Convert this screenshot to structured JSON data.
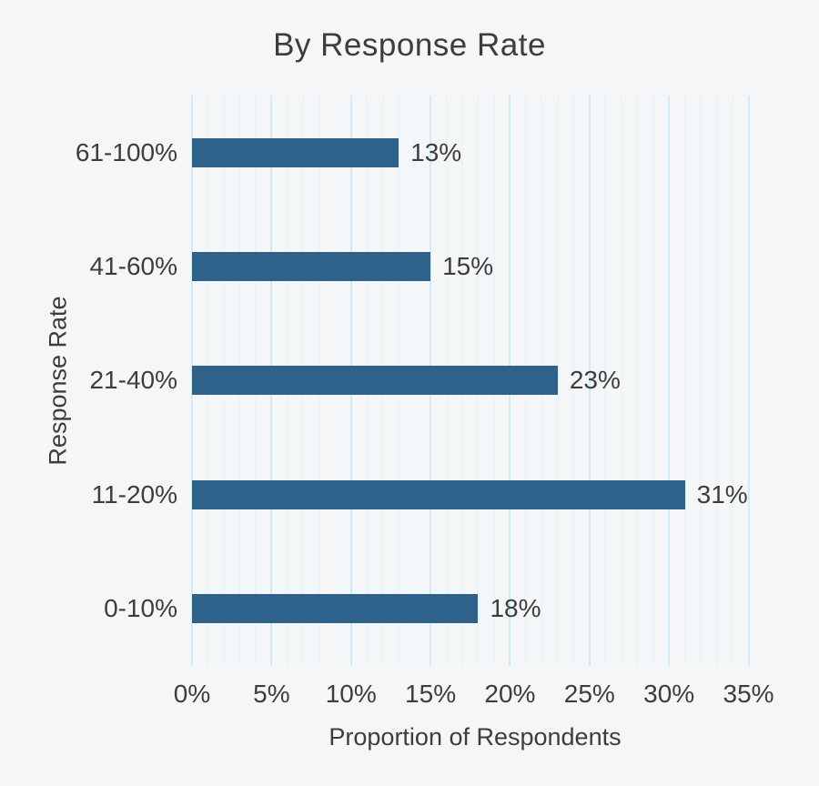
{
  "window": {
    "background": "#f5f6f7"
  },
  "chart_data": {
    "type": "bar",
    "orientation": "horizontal",
    "title": "By Response Rate",
    "xlabel": "Proportion of Respondents",
    "ylabel": "Response Rate",
    "categories": [
      "61-100%",
      "41-60%",
      "21-40%",
      "11-20%",
      "0-10%"
    ],
    "values": [
      13,
      15,
      23,
      31,
      18
    ],
    "value_labels": [
      "13%",
      "15%",
      "23%",
      "31%",
      "18%"
    ],
    "xlim": [
      0,
      35.6
    ],
    "x_tick_values": [
      0,
      5,
      10,
      15,
      20,
      25,
      30,
      35
    ],
    "x_tick_labels": [
      "0%",
      "5%",
      "10%",
      "15%",
      "20%",
      "25%",
      "30%",
      "35%"
    ],
    "grid": {
      "on": true,
      "minor_step": 1,
      "major_step": 5,
      "max_line": 35
    },
    "legend": false,
    "colors": {
      "bar": "#2f628a",
      "major_gridline": "#cfecf8",
      "minor_gridline": "#eaf5fb",
      "text": "#3d3d3d",
      "background": "#f5f6f7"
    }
  }
}
